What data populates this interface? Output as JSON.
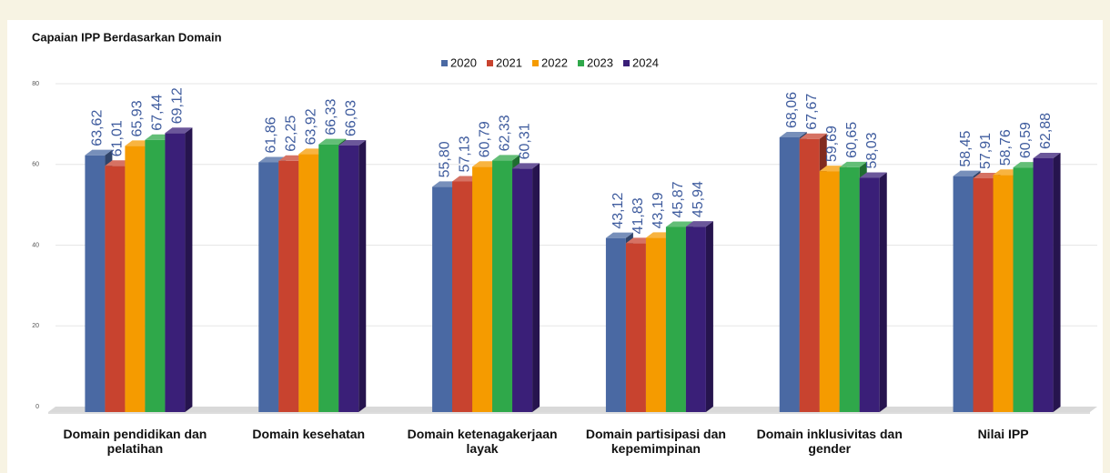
{
  "chart_data": {
    "type": "bar3d",
    "title": "Capaian IPP Berdasarkan Domain",
    "categories": [
      "Domain pendidikan dan pelatihan",
      "Domain kesehatan",
      "Domain ketenagakerjaan layak",
      "Domain partisipasi dan kepemimpinan",
      "Domain inklusivitas dan gender",
      "Nilai IPP"
    ],
    "series": [
      {
        "name": "2020",
        "color": "#4a69a3",
        "values": [
          63.62,
          61.86,
          55.8,
          43.12,
          68.06,
          58.45
        ],
        "value_labels": [
          "63,62",
          "61,86",
          "55,80",
          "43,12",
          "68,06",
          "58,45"
        ]
      },
      {
        "name": "2021",
        "color": "#c8432f",
        "values": [
          61.01,
          62.25,
          57.13,
          41.83,
          67.67,
          57.91
        ],
        "value_labels": [
          "61,01",
          "62,25",
          "57,13",
          "41,83",
          "67,67",
          "57,91"
        ]
      },
      {
        "name": "2022",
        "color": "#f59b00",
        "values": [
          65.93,
          63.92,
          60.79,
          43.19,
          59.69,
          58.76
        ],
        "value_labels": [
          "65,93",
          "63,92",
          "60,79",
          "43,19",
          "59,69",
          "58,76"
        ]
      },
      {
        "name": "2023",
        "color": "#2fa84a",
        "values": [
          67.44,
          66.33,
          62.33,
          45.87,
          60.65,
          60.59
        ],
        "value_labels": [
          "67,44",
          "66,33",
          "62,33",
          "45,87",
          "60,65",
          "60,59"
        ]
      },
      {
        "name": "2024",
        "color": "#3a1f78",
        "values": [
          69.12,
          66.03,
          60.31,
          45.94,
          58.03,
          62.88
        ],
        "value_labels": [
          "69,12",
          "66,03",
          "60,31",
          "45,94",
          "58,03",
          "62,88"
        ]
      }
    ],
    "ylim": [
      0,
      80
    ],
    "yticks": [
      0,
      20,
      40,
      60,
      80
    ],
    "grid": true,
    "legend": "top"
  }
}
